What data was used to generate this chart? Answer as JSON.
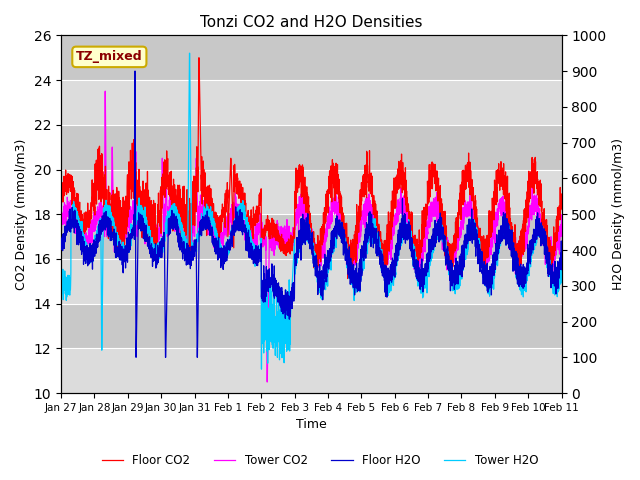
{
  "title": "Tonzi CO2 and H2O Densities",
  "xlabel": "Time",
  "ylabel_left": "CO2 Density (mmol/m3)",
  "ylabel_right": "H2O Density (mmol/m3)",
  "annotation": "TZ_mixed",
  "ylim_left": [
    10,
    26
  ],
  "ylim_right": [
    0,
    1000
  ],
  "yticks_left": [
    10,
    12,
    14,
    16,
    18,
    20,
    22,
    24,
    26
  ],
  "yticks_right": [
    0,
    100,
    200,
    300,
    400,
    500,
    600,
    700,
    800,
    900,
    1000
  ],
  "xtick_labels": [
    "Jan 27",
    "Jan 28",
    "Jan 29",
    "Jan 30",
    "Jan 31",
    "Feb 1",
    "Feb 2",
    "Feb 3",
    "Feb 4",
    "Feb 5",
    "Feb 6",
    "Feb 7",
    "Feb 8",
    "Feb 9",
    "Feb 10",
    "Feb 11"
  ],
  "legend_labels": [
    "Floor CO2",
    "Tower CO2",
    "Floor H2O",
    "Tower H2O"
  ],
  "line_colors": {
    "floor_co2": "#FF0000",
    "tower_co2": "#FF00FF",
    "floor_h2o": "#0000CC",
    "tower_h2o": "#00CCFF"
  },
  "bg_color": "#DCDCDC",
  "band_color1": "#DCDCDC",
  "band_color2": "#C8C8C8",
  "n_points": 3360,
  "total_days": 15.0,
  "seed": 42
}
